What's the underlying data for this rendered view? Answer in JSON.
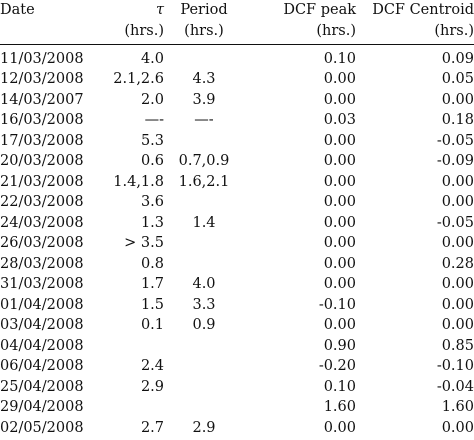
{
  "headers": {
    "date": "Date",
    "tau": "τ",
    "tau_unit": "(hrs.)",
    "period": "Period",
    "period_unit": "(hrs.)",
    "dcf_peak": "DCF peak",
    "dcf_peak_unit": "(hrs.)",
    "dcf_centroid": "DCF Centroid",
    "dcf_centroid_unit": "(hrs.)"
  },
  "rows": [
    {
      "date": "11/03/2008",
      "tau": "4.0",
      "period": "",
      "dcf_peak": "0.10",
      "dcf_centroid": "0.09"
    },
    {
      "date": "12/03/2008",
      "tau": "2.1,2.6",
      "period": "4.3",
      "dcf_peak": "0.00",
      "dcf_centroid": "0.05"
    },
    {
      "date": "14/03/2007",
      "tau": "2.0",
      "period": "3.9",
      "dcf_peak": "0.00",
      "dcf_centroid": "0.00"
    },
    {
      "date": "16/03/2008",
      "tau": "—-",
      "period": "—-",
      "dcf_peak": "0.03",
      "dcf_centroid": "0.18"
    },
    {
      "date": "17/03/2008",
      "tau": "5.3",
      "period": "",
      "dcf_peak": "0.00",
      "dcf_centroid": "-0.05"
    },
    {
      "date": "20/03/2008",
      "tau": "0.6",
      "period": "0.7,0.9",
      "dcf_peak": "0.00",
      "dcf_centroid": "-0.09"
    },
    {
      "date": "21/03/2008",
      "tau": "1.4,1.8",
      "period": "1.6,2.1",
      "dcf_peak": "0.00",
      "dcf_centroid": "0.00"
    },
    {
      "date": "22/03/2008",
      "tau": "3.6",
      "period": "",
      "dcf_peak": "0.00",
      "dcf_centroid": "0.00"
    },
    {
      "date": "24/03/2008",
      "tau": "1.3",
      "period": "1.4",
      "dcf_peak": "0.00",
      "dcf_centroid": "-0.05"
    },
    {
      "date": "26/03/2008",
      "tau": "> 3.5",
      "period": "",
      "dcf_peak": "0.00",
      "dcf_centroid": "0.00"
    },
    {
      "date": "28/03/2008",
      "tau": "0.8",
      "period": "",
      "dcf_peak": "0.00",
      "dcf_centroid": "0.28"
    },
    {
      "date": "31/03/2008",
      "tau": "1.7",
      "period": "4.0",
      "dcf_peak": "0.00",
      "dcf_centroid": "0.00"
    },
    {
      "date": "01/04/2008",
      "tau": "1.5",
      "period": "3.3",
      "dcf_peak": "-0.10",
      "dcf_centroid": "0.00"
    },
    {
      "date": "03/04/2008",
      "tau": "0.1",
      "period": "0.9",
      "dcf_peak": "0.00",
      "dcf_centroid": "0.00"
    },
    {
      "date": "04/04/2008",
      "tau": "",
      "period": "",
      "dcf_peak": "0.90",
      "dcf_centroid": "0.85"
    },
    {
      "date": "06/04/2008",
      "tau": "2.4",
      "period": "",
      "dcf_peak": "-0.20",
      "dcf_centroid": "-0.10"
    },
    {
      "date": "25/04/2008",
      "tau": "2.9",
      "period": "",
      "dcf_peak": "0.10",
      "dcf_centroid": "-0.04"
    },
    {
      "date": "29/04/2008",
      "tau": "",
      "period": "",
      "dcf_peak": "1.60",
      "dcf_centroid": "1.60"
    },
    {
      "date": "02/05/2008",
      "tau": "2.7",
      "period": "2.9",
      "dcf_peak": "0.00",
      "dcf_centroid": "0.00"
    }
  ]
}
